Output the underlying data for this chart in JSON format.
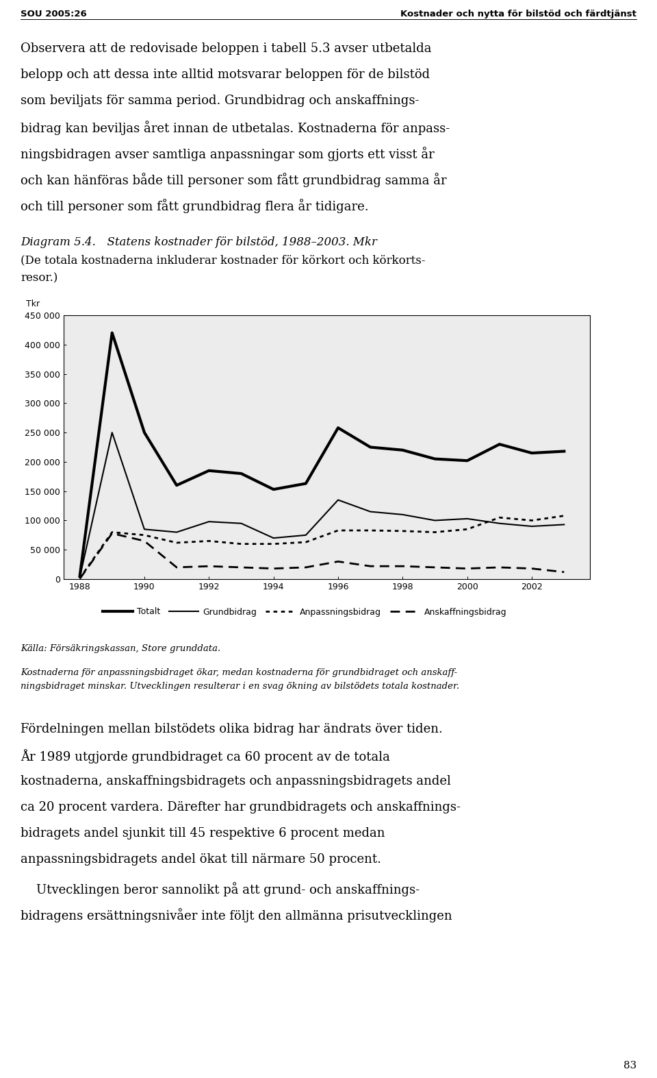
{
  "years": [
    1988,
    1989,
    1990,
    1991,
    1992,
    1993,
    1994,
    1995,
    1996,
    1997,
    1998,
    1999,
    2000,
    2001,
    2002,
    2003
  ],
  "totalt": [
    5000,
    420000,
    250000,
    160000,
    185000,
    180000,
    153000,
    163000,
    258000,
    225000,
    220000,
    205000,
    202000,
    230000,
    215000,
    218000
  ],
  "grundbidrag": [
    3000,
    250000,
    85000,
    80000,
    98000,
    95000,
    70000,
    75000,
    135000,
    115000,
    110000,
    100000,
    103000,
    95000,
    90000,
    93000
  ],
  "anpassningsbidrag": [
    1500,
    80000,
    75000,
    62000,
    65000,
    60000,
    60000,
    63000,
    83000,
    83000,
    82000,
    80000,
    85000,
    105000,
    100000,
    108000
  ],
  "anskaffningsbidrag": [
    500,
    78000,
    65000,
    20000,
    22000,
    20000,
    18000,
    20000,
    30000,
    22000,
    22000,
    20000,
    18000,
    20000,
    18000,
    12000
  ],
  "header_left": "SOU 2005:26",
  "header_right": "Kostnader och nytta för bilstöd och färdtjänst",
  "p1_lines": [
    "Observera att de redovisade beloppen i tabell 5.3 avser utbetalda",
    "belopp och att dessa inte alltid motsvarar beloppen för de bilstöd",
    "som beviljats för samma period. Grundbidrag och anskaffnings-",
    "bidrag kan beviljas året innan de utbetalas. Kostnaderna för anpass-",
    "ningsbidragen avser samtliga anpassningar som gjorts ett visst år",
    "och kan hänföras både till personer som fått grundbidrag samma år",
    "och till personer som fått grundbidrag flera år tidigare."
  ],
  "diag_title": "Diagram 5.4. Statens kostnader för bilstöd, 1988–2003. Mkr",
  "diag_sub1": "(De totala kostnaderna inkluderar kostnader för körkort och körkorts-",
  "diag_sub2": "resor.)",
  "ylabel": "Tkr",
  "ylim": [
    0,
    450000
  ],
  "yticks": [
    0,
    50000,
    100000,
    150000,
    200000,
    250000,
    300000,
    350000,
    400000,
    450000
  ],
  "ytick_labels": [
    "0",
    "50 000",
    "100 000",
    "150 000",
    "200 000",
    "250 000",
    "300 000",
    "350 000",
    "400 000",
    "450 000"
  ],
  "xticks": [
    1988,
    1990,
    1992,
    1994,
    1996,
    1998,
    2000,
    2002
  ],
  "source": "Källa: Försäkringskassan, Store grunddata.",
  "cap_line1": "Kostnaderna för anpassningsbidraget ökar, medan kostnaderna för grundbidraget och anskaff-",
  "cap_line2": "ningsbidraget minskar. Utvecklingen resulterar i en svag ökning av bilstödets totala kostnader.",
  "p2_lines": [
    "Fördelningen mellan bilstödets olika bidrag har ändrats över tiden.",
    "År 1989 utgjorde grundbidraget ca 60 procent av de totala",
    "kostnaderna, anskaffningsbidragets och anpassningsbidragets andel",
    "ca 20 procent vardera. Därefter har grundbidragets och anskaffnings-",
    "bidragets andel sjunkit till 45 respektive 6 procent medan",
    "anpassningsbidragets andel ökat till närmare 50 procent."
  ],
  "p3_lines": [
    "    Utvecklingen beror sannolikt på att grund- och anskaffnings-",
    "bidragens ersättningsnivåer inte följt den allmänna prisutvecklingen"
  ],
  "page_number": "83",
  "chart_bg": "#ececec",
  "line_color": "#000000"
}
